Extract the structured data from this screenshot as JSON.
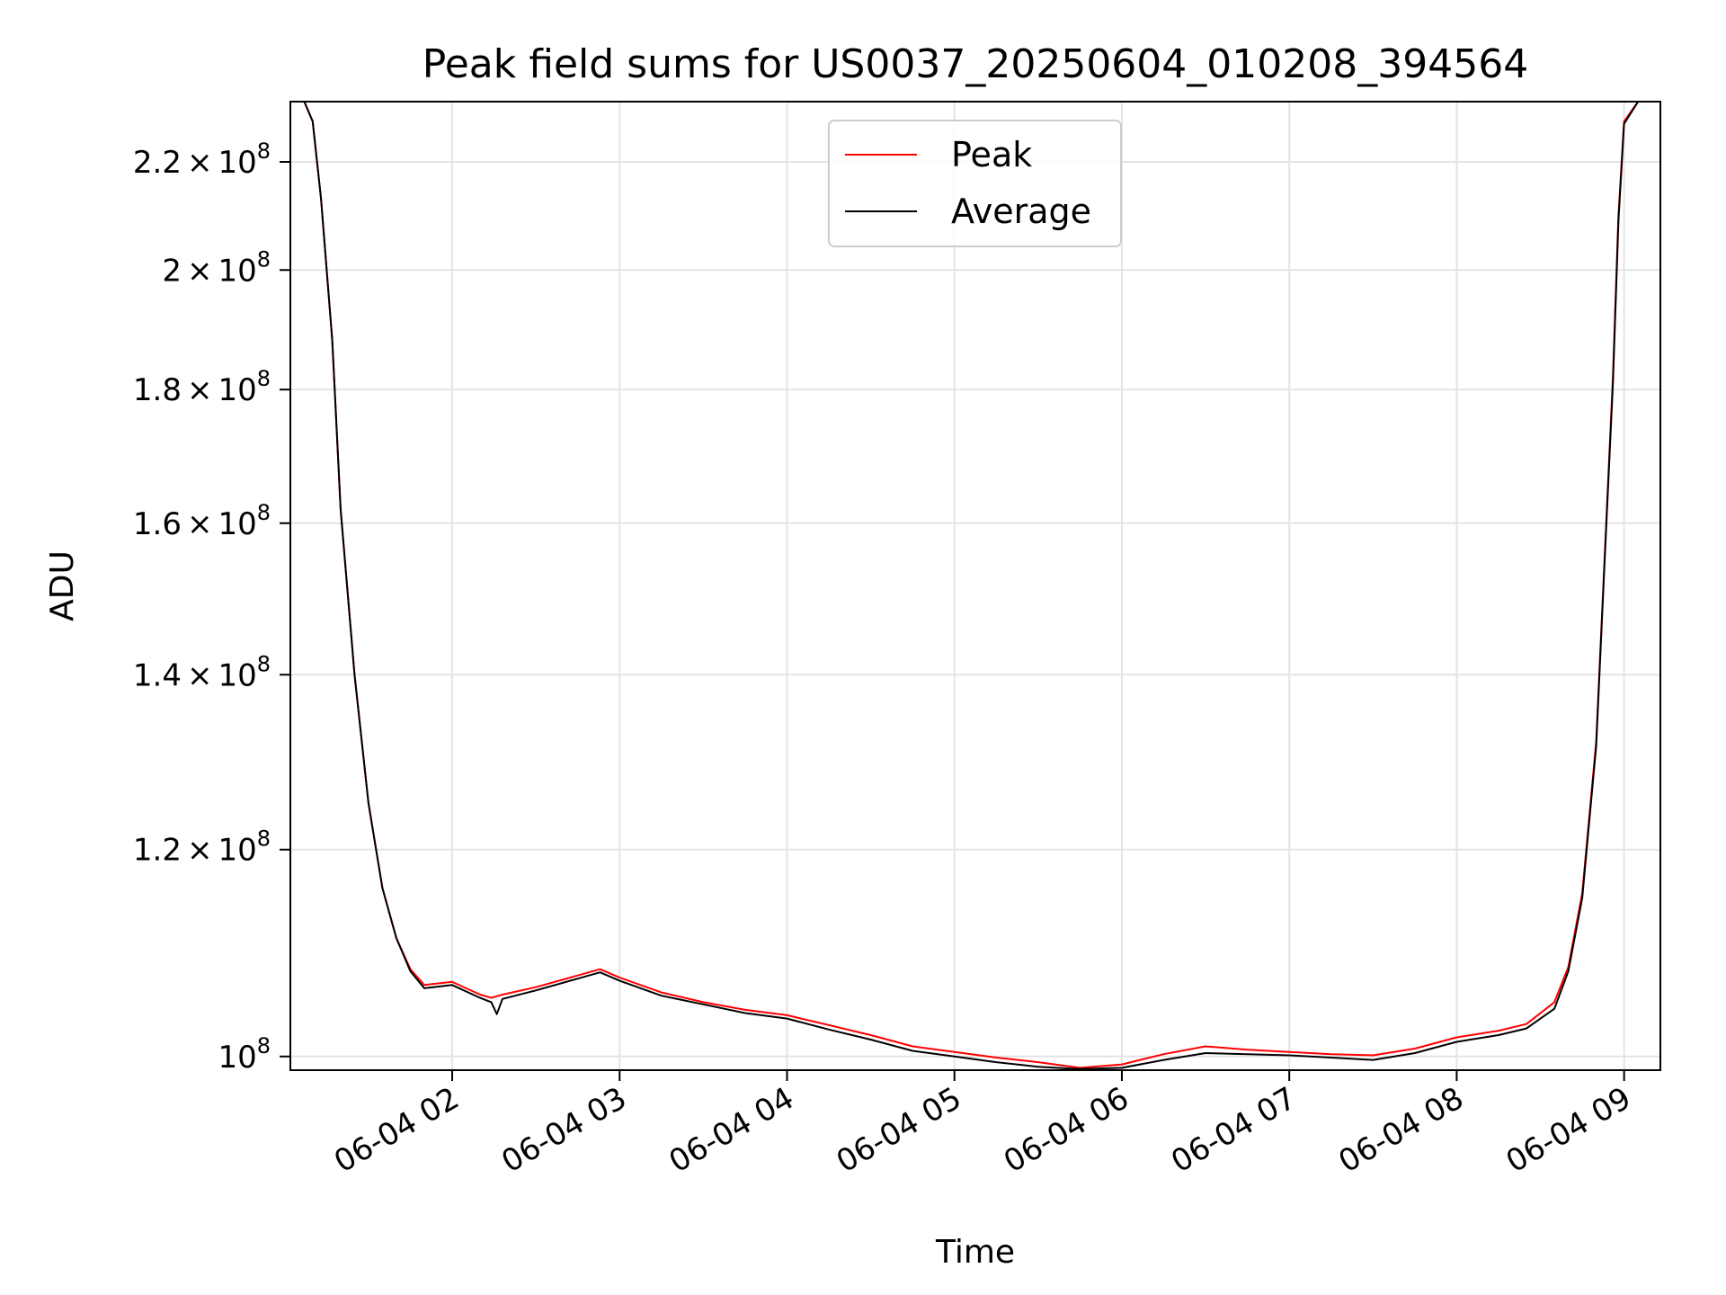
{
  "chart_data": {
    "type": "line",
    "title": "Peak field sums for US0037_20250604_010208_394564",
    "xlabel": "Time",
    "ylabel": "ADU",
    "y_scale": "log",
    "grid": true,
    "legend_position": "top-center",
    "x_range": [
      "2025-06-04 01:02",
      "2025-06-04 09:13"
    ],
    "ylim": [
      98800000,
      232000000
    ],
    "x_ticks": [
      "06-04 02",
      "06-04 03",
      "06-04 04",
      "06-04 05",
      "06-04 06",
      "06-04 07",
      "06-04 08",
      "06-04 09"
    ],
    "y_ticks": [
      {
        "value": 100000000,
        "mantissa": "",
        "base": "10",
        "exp": "8"
      },
      {
        "value": 120000000,
        "mantissa": "1.2",
        "base": "10",
        "exp": "8"
      },
      {
        "value": 140000000,
        "mantissa": "1.4",
        "base": "10",
        "exp": "8"
      },
      {
        "value": 160000000,
        "mantissa": "1.6",
        "base": "10",
        "exp": "8"
      },
      {
        "value": 180000000,
        "mantissa": "1.8",
        "base": "10",
        "exp": "8"
      },
      {
        "value": 200000000,
        "mantissa": "2",
        "base": "10",
        "exp": "8"
      },
      {
        "value": 220000000,
        "mantissa": "2.2",
        "base": "10",
        "exp": "8"
      }
    ],
    "series": [
      {
        "name": "Peak",
        "color": "#ff0000",
        "x": [
          "01:02",
          "01:07",
          "01:10",
          "01:13",
          "01:17",
          "01:20",
          "01:25",
          "01:30",
          "01:35",
          "01:40",
          "01:45",
          "01:50",
          "02:00",
          "02:10",
          "02:14",
          "02:18",
          "02:30",
          "02:45",
          "02:53",
          "03:00",
          "03:15",
          "03:30",
          "03:45",
          "04:00",
          "04:15",
          "04:30",
          "04:45",
          "05:00",
          "05:15",
          "05:30",
          "05:45",
          "06:00",
          "06:15",
          "06:30",
          "06:45",
          "07:00",
          "07:15",
          "07:30",
          "07:45",
          "08:00",
          "08:15",
          "08:25",
          "08:35",
          "08:40",
          "08:45",
          "08:50",
          "08:53",
          "08:56",
          "08:58",
          "09:00",
          "09:05",
          "09:13"
        ],
        "y": [
          232000000,
          232000000,
          228000000,
          213000000,
          188000000,
          162000000,
          140000000,
          125000000,
          116000000,
          111000000,
          108000000,
          106500000,
          106800000,
          105600000,
          105300000,
          105600000,
          106300000,
          107400000,
          108000000,
          107200000,
          105800000,
          104900000,
          104200000,
          103700000,
          102800000,
          101900000,
          100900000,
          100400000,
          99900000,
          99500000,
          99000000,
          99300000,
          100200000,
          100900000,
          100600000,
          100400000,
          100200000,
          100100000,
          100700000,
          101700000,
          102300000,
          102900000,
          104900000,
          108200000,
          115500000,
          132000000,
          155000000,
          182000000,
          210000000,
          228000000,
          232000000,
          232000000
        ]
      },
      {
        "name": "Average",
        "color": "#000000",
        "x": [
          "01:02",
          "01:07",
          "01:10",
          "01:13",
          "01:17",
          "01:20",
          "01:25",
          "01:30",
          "01:35",
          "01:40",
          "01:45",
          "01:50",
          "02:00",
          "02:10",
          "02:14",
          "02:16",
          "02:18",
          "02:30",
          "02:45",
          "02:53",
          "03:00",
          "03:15",
          "03:30",
          "03:45",
          "04:00",
          "04:15",
          "04:30",
          "04:45",
          "05:00",
          "05:15",
          "05:30",
          "05:45",
          "06:00",
          "06:15",
          "06:30",
          "06:45",
          "07:00",
          "07:15",
          "07:30",
          "07:45",
          "08:00",
          "08:15",
          "08:25",
          "08:35",
          "08:40",
          "08:45",
          "08:50",
          "08:53",
          "08:56",
          "08:58",
          "09:00",
          "09:05",
          "09:13"
        ],
        "y": [
          232000000,
          232000000,
          228000000,
          213000000,
          188000000,
          162000000,
          140000000,
          125000000,
          116000000,
          111000000,
          107800000,
          106200000,
          106500000,
          105300000,
          104900000,
          103800000,
          105200000,
          106000000,
          107100000,
          107700000,
          106900000,
          105500000,
          104700000,
          103900000,
          103400000,
          102400000,
          101500000,
          100500000,
          100000000,
          99500000,
          99100000,
          98900000,
          99000000,
          99700000,
          100300000,
          100200000,
          100100000,
          99900000,
          99700000,
          100300000,
          101300000,
          101900000,
          102500000,
          104300000,
          107800000,
          115000000,
          131500000,
          154500000,
          181000000,
          209000000,
          227500000,
          232000000,
          232000000
        ]
      }
    ]
  }
}
